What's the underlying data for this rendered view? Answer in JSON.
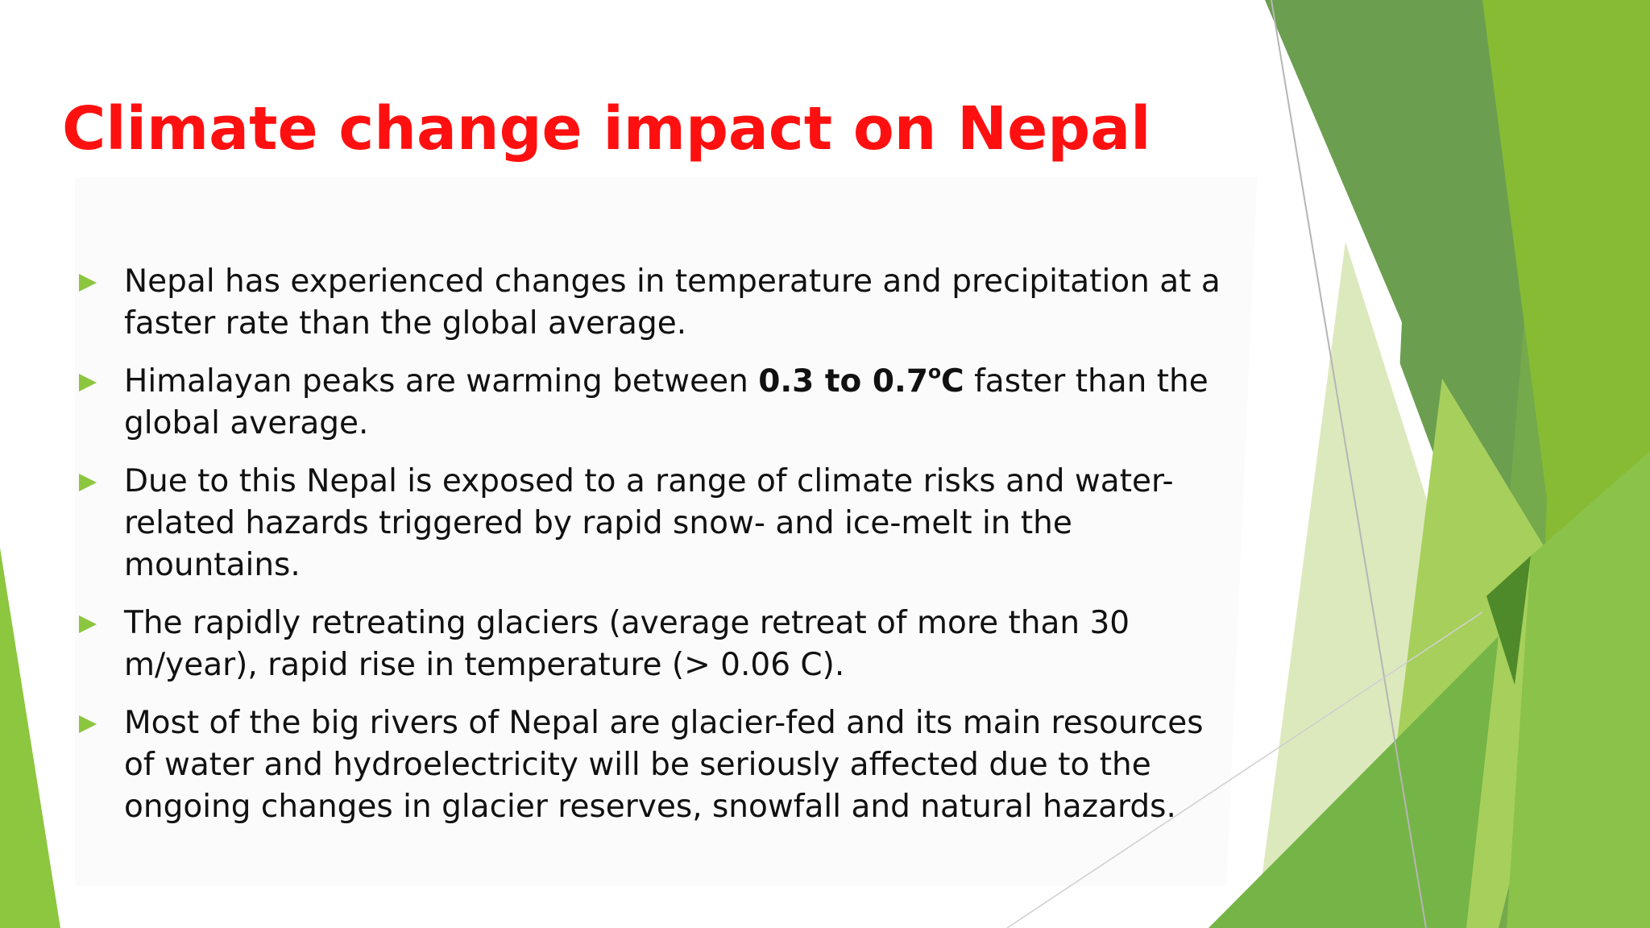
{
  "slide": {
    "title": "Climate change impact on Nepal",
    "colors": {
      "title": "#ff1010",
      "bullet_arrow": "#8cc63f",
      "green_light": "#a7cf5c",
      "green_mid": "#76ac49",
      "green_dark": "#4f8a2a",
      "green_pale": "#d9e9b9"
    },
    "bullets": [
      {
        "icon": "triangle-bullet-icon",
        "text": "Nepal has experienced changes in temperature and precipitation at a faster rate than the global average."
      },
      {
        "icon": "triangle-bullet-icon",
        "text_before": "Himalayan peaks are warming between ",
        "bold_text": "0.3 to 0.7",
        "superscript": "o",
        "bold_unit": "C",
        "text_after": " faster than the global average."
      },
      {
        "icon": "triangle-bullet-icon",
        "text": "Due to this  Nepal is exposed to a range of climate risks and water-related hazards triggered by rapid snow- and ice-melt in the mountains."
      },
      {
        "icon": "triangle-bullet-icon",
        "text": " The rapidly retreating glaciers (average retreat of more than 30 m/year), rapid rise in temperature (> 0.06 C)."
      },
      {
        "icon": "triangle-bullet-icon",
        "text": " Most of the big rivers of Nepal are glacier-fed and its main resources of water and hydroelectricity will be seriously affected due to the ongoing changes in glacier reserves, snowfall and natural hazards."
      }
    ]
  }
}
